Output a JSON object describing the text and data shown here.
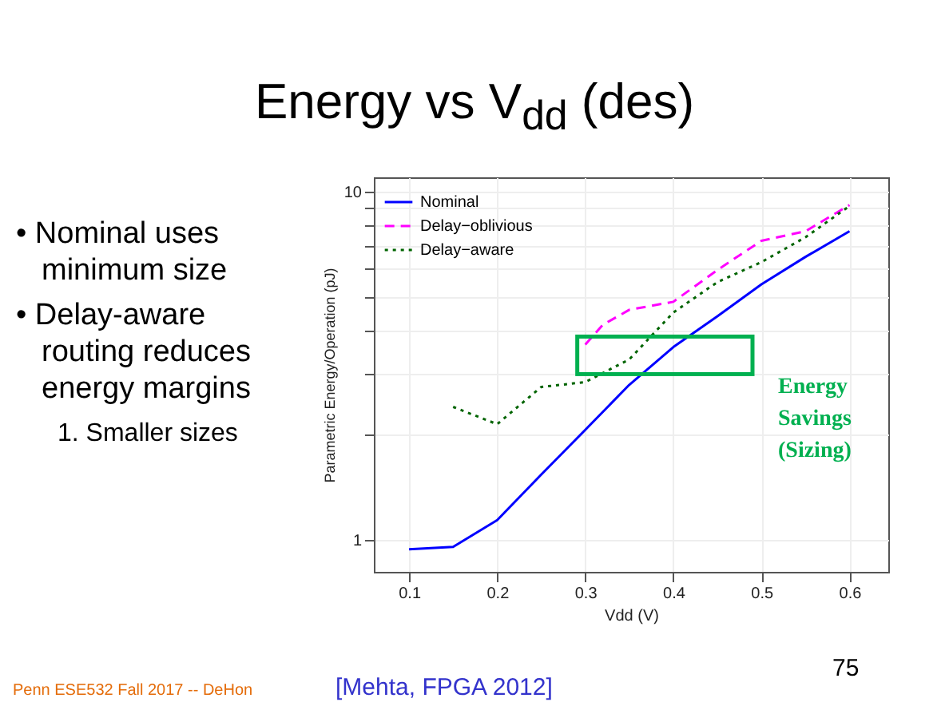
{
  "chart_data": {
    "type": "line",
    "title": "Energy vs V$_{dd}$ (des)",
    "xlabel": "Vdd (V)",
    "ylabel": "Parametric Energy/Operation (pJ)",
    "log": "y",
    "grid": true,
    "legend": "top left",
    "xlim": [
      0.06,
      0.644
    ],
    "xticks": [
      0.1,
      0.2,
      0.3,
      0.4,
      0.5,
      0.6
    ],
    "ylim": [
      0.81,
      11
    ],
    "yticks": [
      1,
      {
        "value": 2,
        "label": null
      },
      {
        "value": 3,
        "label": null
      },
      {
        "value": 4,
        "label": null
      },
      {
        "value": 5,
        "label": null
      },
      {
        "value": 6,
        "label": null
      },
      {
        "value": 7,
        "label": null
      },
      {
        "value": 8,
        "label": null
      },
      {
        "value": 9,
        "label": null
      },
      10
    ],
    "series": [
      {
        "name": "Nominal",
        "color": "#0000ff",
        "line_style": "solid",
        "x": [
          0.1,
          0.15,
          0.2,
          0.25,
          0.3,
          0.35,
          0.4,
          0.45,
          0.5,
          0.55,
          0.6
        ],
        "values": [
          0.94,
          0.955,
          1.14,
          1.54,
          2.07,
          2.79,
          3.58,
          4.39,
          5.42,
          6.5,
          7.7
        ]
      },
      {
        "name": "Delay−oblivious",
        "color": "#ff00ff",
        "line_style": "dashed",
        "x": [
          0.3,
          0.32,
          0.35,
          0.4,
          0.45,
          0.5,
          0.55,
          0.6
        ],
        "values": [
          3.64,
          4.15,
          4.58,
          4.83,
          5.96,
          7.23,
          7.7,
          9.16
        ]
      },
      {
        "name": "Delay−aware",
        "color": "#006400",
        "line_style": "dotted",
        "x": [
          0.15,
          0.2,
          0.25,
          0.3,
          0.35,
          0.4,
          0.45,
          0.5,
          0.55,
          0.6
        ],
        "values": [
          2.41,
          2.15,
          2.75,
          2.84,
          3.3,
          4.5,
          5.5,
          6.28,
          7.4,
          9.1
        ]
      }
    ],
    "annotations": [
      "• Nominal uses minimum size",
      "• Delay-aware routing reduces energy margins",
      "1.  Smaller sizes",
      "Penn ESE532 Fall 2017 -- DeHon",
      "[Mehta,  FPGA 2012]",
      "75",
      "Energy Savings (Sizing)"
    ]
  }
}
